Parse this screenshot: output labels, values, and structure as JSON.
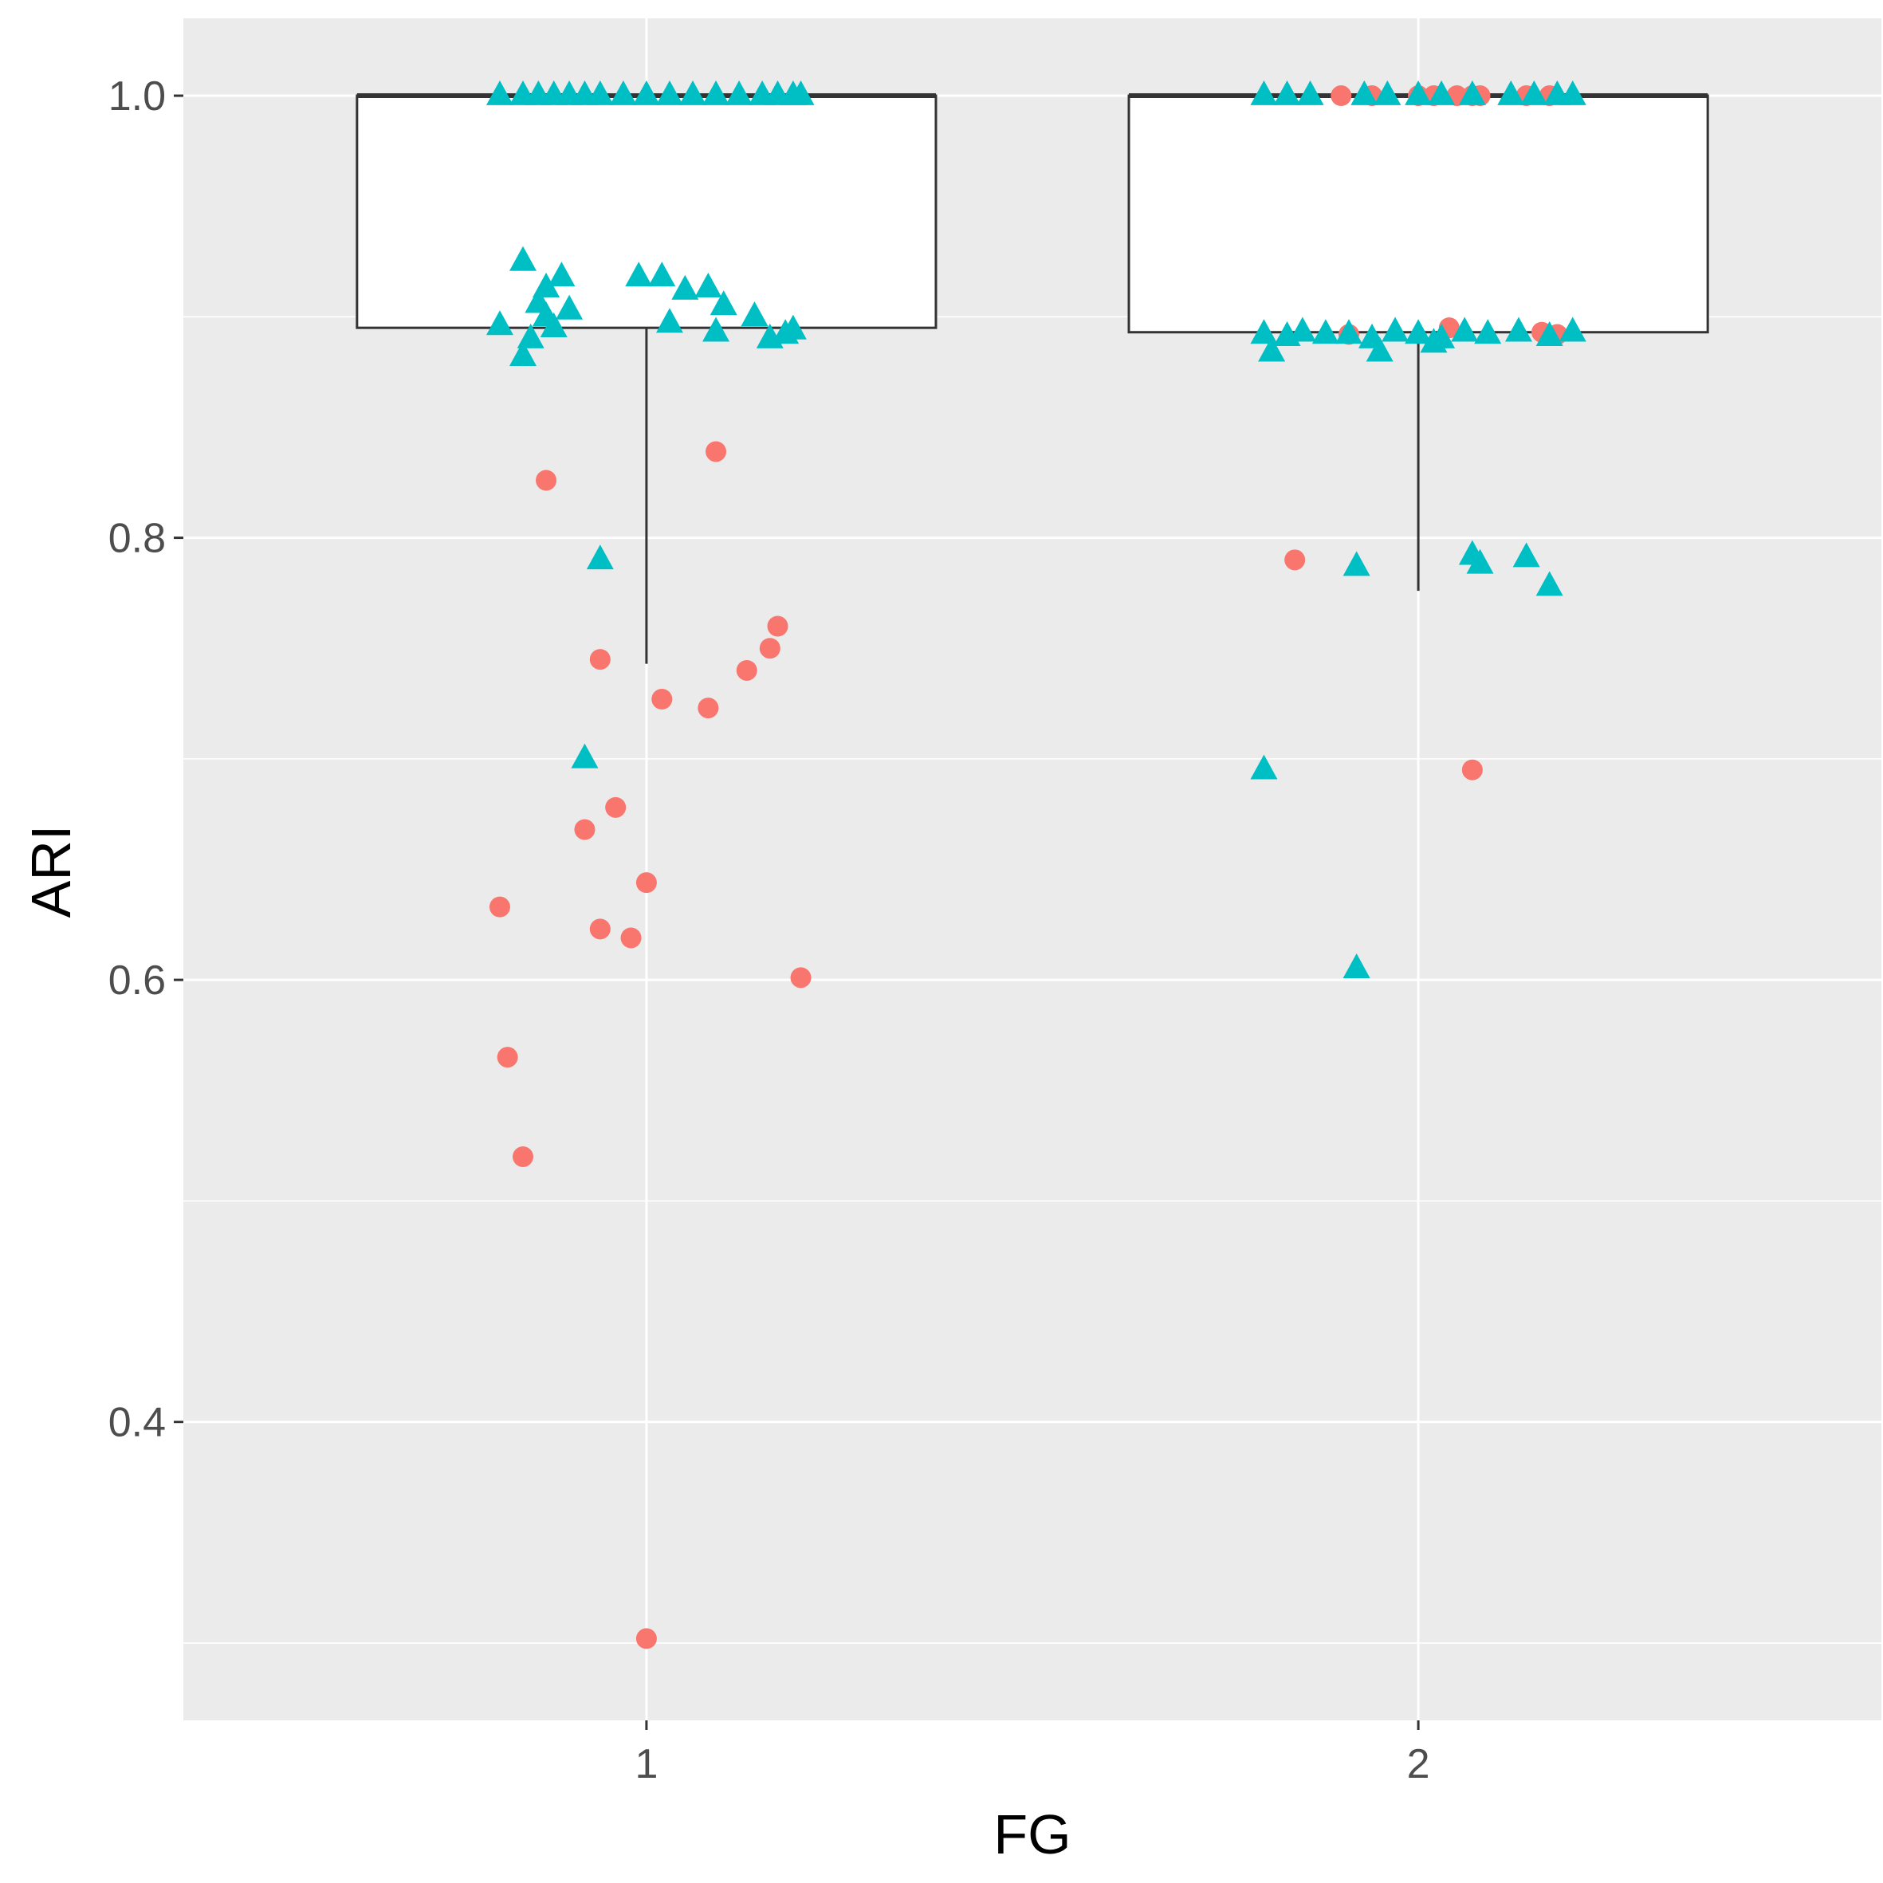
{
  "chart_data": {
    "type": "box",
    "xlabel": "FG",
    "ylabel": "ARI",
    "categories": [
      "1",
      "2"
    ],
    "ylim": [
      0.265,
      1.035
    ],
    "y_ticks": [
      "0.4",
      "0.6",
      "0.8",
      "1.0"
    ],
    "y_tick_values": [
      0.4,
      0.6,
      0.8,
      1.0
    ],
    "y_minor_values": [
      0.3,
      0.5,
      0.7,
      0.9
    ],
    "boxes": [
      {
        "category": "1",
        "lower_whisker": 0.743,
        "q1": 0.895,
        "median": 1.0,
        "q3": 1.0,
        "upper_whisker": 1.0
      },
      {
        "category": "2",
        "lower_whisker": 0.776,
        "q1": 0.893,
        "median": 1.0,
        "q3": 1.0,
        "upper_whisker": 1.0
      }
    ],
    "colors": {
      "panel": "#ebebeb",
      "grid": "#ffffff",
      "box_fill": "#ffffff",
      "box_line": "#333333",
      "circle": "#f8766d",
      "triangle": "#00bfc4"
    },
    "series": [
      {
        "name": "circle",
        "marker": "circle",
        "points": [
          [
            0.87,
            0.826
          ],
          [
            1.09,
            0.839
          ],
          [
            0.94,
            0.745
          ],
          [
            1.02,
            0.727
          ],
          [
            1.08,
            0.723
          ],
          [
            1.13,
            0.74
          ],
          [
            1.16,
            0.75
          ],
          [
            1.17,
            0.76
          ],
          [
            0.96,
            0.678
          ],
          [
            0.92,
            0.668
          ],
          [
            1.0,
            0.644
          ],
          [
            0.81,
            0.633
          ],
          [
            0.94,
            0.623
          ],
          [
            0.98,
            0.619
          ],
          [
            1.2,
            0.601
          ],
          [
            0.82,
            0.565
          ],
          [
            0.84,
            0.52
          ],
          [
            1.0,
            0.302
          ],
          [
            1.84,
            0.79
          ],
          [
            2.07,
            0.695
          ],
          [
            1.9,
            1.0
          ],
          [
            1.94,
            1.0
          ],
          [
            2.0,
            1.0
          ],
          [
            2.02,
            1.0
          ],
          [
            2.05,
            1.0
          ],
          [
            2.07,
            1.0
          ],
          [
            2.08,
            1.0
          ],
          [
            2.14,
            1.0
          ],
          [
            2.17,
            1.0
          ],
          [
            1.91,
            0.892
          ],
          [
            2.04,
            0.895
          ],
          [
            2.16,
            0.893
          ],
          [
            2.18,
            0.892
          ]
        ]
      },
      {
        "name": "triangle",
        "marker": "triangle",
        "points": [
          [
            0.81,
            1.0
          ],
          [
            0.84,
            1.0
          ],
          [
            0.86,
            1.0
          ],
          [
            0.88,
            1.0
          ],
          [
            0.9,
            1.0
          ],
          [
            0.92,
            1.0
          ],
          [
            0.94,
            1.0
          ],
          [
            0.97,
            1.0
          ],
          [
            1.0,
            1.0
          ],
          [
            1.03,
            1.0
          ],
          [
            1.06,
            1.0
          ],
          [
            1.09,
            1.0
          ],
          [
            1.12,
            1.0
          ],
          [
            1.15,
            1.0
          ],
          [
            1.17,
            1.0
          ],
          [
            1.19,
            1.0
          ],
          [
            1.2,
            1.0
          ],
          [
            0.84,
            0.925
          ],
          [
            0.87,
            0.913
          ],
          [
            0.89,
            0.918
          ],
          [
            0.9,
            0.903
          ],
          [
            0.86,
            0.906
          ],
          [
            0.88,
            0.895
          ],
          [
            0.85,
            0.89
          ],
          [
            0.81,
            0.896
          ],
          [
            0.84,
            0.882
          ],
          [
            0.87,
            0.9
          ],
          [
            0.99,
            0.918
          ],
          [
            1.02,
            0.918
          ],
          [
            1.05,
            0.912
          ],
          [
            1.08,
            0.913
          ],
          [
            1.1,
            0.905
          ],
          [
            1.14,
            0.9
          ],
          [
            1.03,
            0.897
          ],
          [
            1.09,
            0.893
          ],
          [
            1.16,
            0.89
          ],
          [
            1.18,
            0.892
          ],
          [
            1.19,
            0.894
          ],
          [
            0.94,
            0.79
          ],
          [
            0.92,
            0.7
          ],
          [
            1.8,
            1.0
          ],
          [
            1.83,
            1.0
          ],
          [
            1.86,
            1.0
          ],
          [
            1.93,
            1.0
          ],
          [
            1.96,
            1.0
          ],
          [
            2.0,
            1.0
          ],
          [
            2.03,
            1.0
          ],
          [
            2.07,
            1.0
          ],
          [
            2.12,
            1.0
          ],
          [
            2.15,
            1.0
          ],
          [
            2.18,
            1.0
          ],
          [
            2.2,
            1.0
          ],
          [
            1.8,
            0.892
          ],
          [
            1.83,
            0.891
          ],
          [
            1.85,
            0.893
          ],
          [
            1.88,
            0.892
          ],
          [
            1.91,
            0.892
          ],
          [
            1.94,
            0.89
          ],
          [
            1.97,
            0.893
          ],
          [
            2.0,
            0.892
          ],
          [
            2.03,
            0.89
          ],
          [
            2.06,
            0.893
          ],
          [
            2.09,
            0.892
          ],
          [
            2.13,
            0.893
          ],
          [
            2.17,
            0.891
          ],
          [
            2.2,
            0.893
          ],
          [
            1.81,
            0.884
          ],
          [
            1.95,
            0.884
          ],
          [
            2.02,
            0.888
          ],
          [
            1.92,
            0.787
          ],
          [
            2.07,
            0.792
          ],
          [
            2.08,
            0.788
          ],
          [
            2.14,
            0.791
          ],
          [
            2.17,
            0.778
          ],
          [
            1.8,
            0.695
          ],
          [
            1.92,
            0.605
          ]
        ]
      }
    ]
  }
}
